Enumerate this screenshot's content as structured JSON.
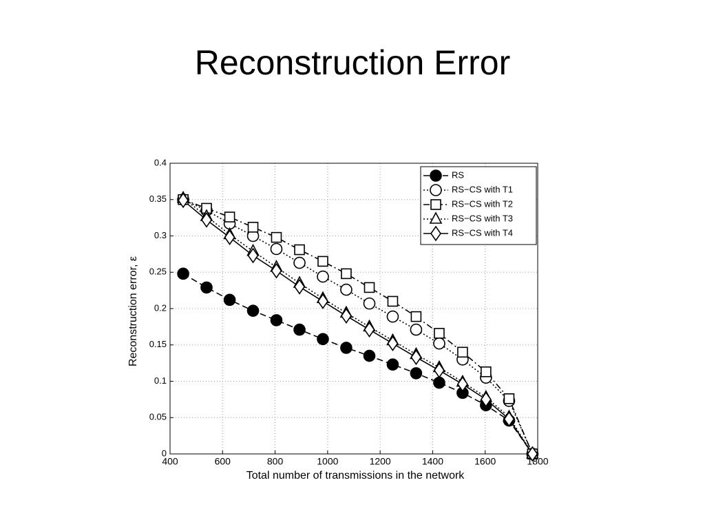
{
  "slide_title": "Reconstruction Error",
  "chart_data": {
    "type": "line",
    "x_label": "Total number of transmissions in the network",
    "y_label": "Reconstruction error, ε",
    "x": [
      450,
      539,
      627,
      716,
      805,
      893,
      982,
      1071,
      1159,
      1248,
      1337,
      1425,
      1514,
      1603,
      1691,
      1780
    ],
    "series": [
      {
        "name": "RS",
        "color": "#000000",
        "line_style": "dashed",
        "marker": "circle-filled",
        "values": [
          0.248,
          0.229,
          0.212,
          0.197,
          0.184,
          0.171,
          0.158,
          0.146,
          0.135,
          0.123,
          0.111,
          0.098,
          0.084,
          0.067,
          0.046,
          0
        ]
      },
      {
        "name": "RS−CS with T1",
        "color": "#000000",
        "line_style": "dotted",
        "marker": "circle-open",
        "values": [
          0.35,
          0.335,
          0.317,
          0.3,
          0.282,
          0.263,
          0.244,
          0.226,
          0.207,
          0.189,
          0.171,
          0.152,
          0.13,
          0.105,
          0.073,
          0
        ]
      },
      {
        "name": "RS−CS with T2",
        "color": "#000000",
        "line_style": "dashdot",
        "marker": "square-open",
        "values": [
          0.35,
          0.338,
          0.326,
          0.312,
          0.298,
          0.281,
          0.265,
          0.248,
          0.229,
          0.21,
          0.189,
          0.166,
          0.14,
          0.113,
          0.076,
          0
        ]
      },
      {
        "name": "RS−CS with T3",
        "color": "#000000",
        "line_style": "dotted",
        "marker": "triangle-open",
        "values": [
          0.352,
          0.327,
          0.302,
          0.279,
          0.257,
          0.235,
          0.214,
          0.194,
          0.175,
          0.156,
          0.137,
          0.119,
          0.099,
          0.078,
          0.051,
          0
        ]
      },
      {
        "name": "RS−CS with T4",
        "color": "#000000",
        "line_style": "solid",
        "marker": "diamond-open",
        "values": [
          0.349,
          0.322,
          0.298,
          0.273,
          0.252,
          0.23,
          0.21,
          0.19,
          0.171,
          0.152,
          0.133,
          0.115,
          0.096,
          0.075,
          0.048,
          0
        ]
      }
    ],
    "xlim": [
      400,
      1800
    ],
    "xticks": [
      400,
      600,
      800,
      1000,
      1200,
      1400,
      1600,
      1800
    ],
    "ylim": [
      0,
      0.4
    ],
    "yticks": [
      0,
      0.05,
      0.1,
      0.15,
      0.2,
      0.25,
      0.3,
      0.35,
      0.4
    ],
    "grid": true,
    "legend": "upper-right"
  }
}
